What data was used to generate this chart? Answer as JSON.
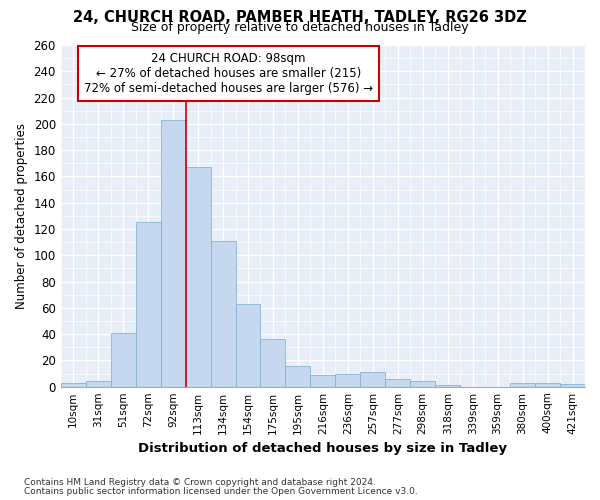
{
  "title1": "24, CHURCH ROAD, PAMBER HEATH, TADLEY, RG26 3DZ",
  "title2": "Size of property relative to detached houses in Tadley",
  "xlabel": "Distribution of detached houses by size in Tadley",
  "ylabel": "Number of detached properties",
  "categories": [
    "10sqm",
    "31sqm",
    "51sqm",
    "72sqm",
    "92sqm",
    "113sqm",
    "134sqm",
    "154sqm",
    "175sqm",
    "195sqm",
    "216sqm",
    "236sqm",
    "257sqm",
    "277sqm",
    "298sqm",
    "318sqm",
    "339sqm",
    "359sqm",
    "380sqm",
    "400sqm",
    "421sqm"
  ],
  "values": [
    3,
    4,
    41,
    125,
    203,
    167,
    111,
    63,
    36,
    16,
    9,
    10,
    11,
    6,
    4,
    1,
    0,
    0,
    3,
    3,
    2
  ],
  "bar_color": "#c5d8ef",
  "bar_edge_color": "#7aabcc",
  "bar_edge_width": 0.5,
  "vline_after_index": 4,
  "vline_color": "#cc0000",
  "annotation_line1": "24 CHURCH ROAD: 98sqm",
  "annotation_line2": "← 27% of detached houses are smaller (215)",
  "annotation_line3": "72% of semi-detached houses are larger (576) →",
  "annotation_box_color": "white",
  "annotation_box_edge": "#cc0000",
  "ylim_max": 260,
  "yticks": [
    0,
    20,
    40,
    60,
    80,
    100,
    120,
    140,
    160,
    180,
    200,
    220,
    240,
    260
  ],
  "plot_bg": "#e8eef8",
  "grid_color": "#ffffff",
  "footnote1": "Contains HM Land Registry data © Crown copyright and database right 2024.",
  "footnote2": "Contains public sector information licensed under the Open Government Licence v3.0."
}
